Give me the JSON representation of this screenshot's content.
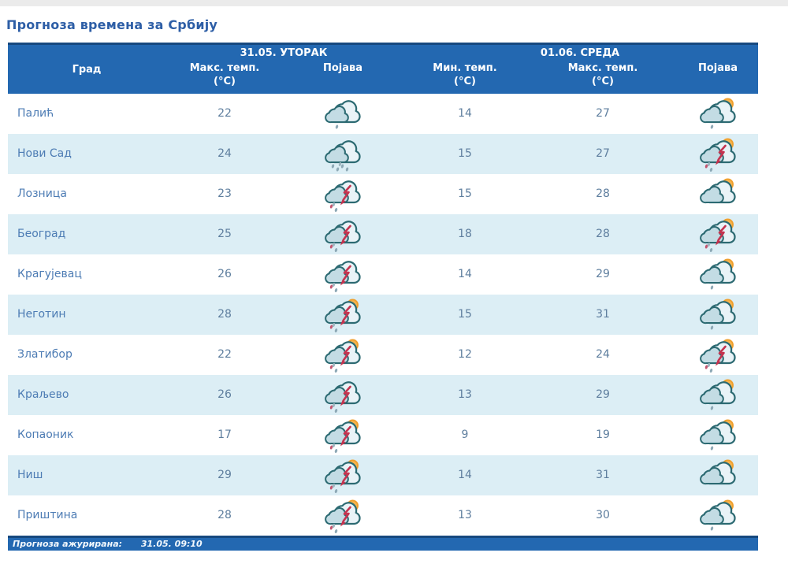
{
  "page": {
    "title": "Прогноза времена за Србију"
  },
  "table": {
    "day_groups": [
      {
        "label": "31.05. УТОРАК"
      },
      {
        "label": "01.06. СРЕДА"
      }
    ],
    "columns": {
      "city": "Град",
      "max_temp": "Макс. темп.",
      "min_temp": "Мин. темп.",
      "unit": "(°C)",
      "phenomenon": "Појава"
    },
    "rows": [
      {
        "city": "Палић",
        "day1_max": "22",
        "day1_icon": "cloud-drizzle-icon",
        "day2_min": "14",
        "day2_max": "27",
        "day2_icon": "sun-cloud-drizzle-icon"
      },
      {
        "city": "Нови Сад",
        "day1_max": "24",
        "day1_icon": "cloud-rain-icon",
        "day2_min": "15",
        "day2_max": "27",
        "day2_icon": "thunderstorm-sun-icon"
      },
      {
        "city": "Лозница",
        "day1_max": "23",
        "day1_icon": "thunderstorm-icon",
        "day2_min": "15",
        "day2_max": "28",
        "day2_icon": "sun-cloud-icon"
      },
      {
        "city": "Београд",
        "day1_max": "25",
        "day1_icon": "thunderstorm-icon",
        "day2_min": "18",
        "day2_max": "28",
        "day2_icon": "thunderstorm-sun-icon"
      },
      {
        "city": "Крагујевац",
        "day1_max": "26",
        "day1_icon": "thunderstorm-icon",
        "day2_min": "14",
        "day2_max": "29",
        "day2_icon": "sun-cloud-drizzle-icon"
      },
      {
        "city": "Неготин",
        "day1_max": "28",
        "day1_icon": "thunderstorm-sun-icon",
        "day2_min": "15",
        "day2_max": "31",
        "day2_icon": "sun-cloud-drizzle-icon"
      },
      {
        "city": "Златибор",
        "day1_max": "22",
        "day1_icon": "thunderstorm-sun-icon",
        "day2_min": "12",
        "day2_max": "24",
        "day2_icon": "thunderstorm-sun-icon"
      },
      {
        "city": "Краљево",
        "day1_max": "26",
        "day1_icon": "thunderstorm-icon",
        "day2_min": "13",
        "day2_max": "29",
        "day2_icon": "sun-cloud-drizzle-icon"
      },
      {
        "city": "Копаоник",
        "day1_max": "17",
        "day1_icon": "thunderstorm-sun-icon",
        "day2_min": "9",
        "day2_max": "19",
        "day2_icon": "sun-cloud-drizzle-icon"
      },
      {
        "city": "Ниш",
        "day1_max": "29",
        "day1_icon": "thunderstorm-sun-icon",
        "day2_min": "14",
        "day2_max": "31",
        "day2_icon": "sun-cloud-icon"
      },
      {
        "city": "Приштина",
        "day1_max": "28",
        "day1_icon": "thunderstorm-sun-icon",
        "day2_min": "13",
        "day2_max": "30",
        "day2_icon": "sun-cloud-drizzle-icon"
      }
    ]
  },
  "footer": {
    "label": "Прогноза ажурирана:",
    "timestamp": "31.05. 09:10"
  },
  "colors": {
    "header_bg": "#2368b1",
    "header_edge": "#17497f",
    "row_alt_bg": "#dceef5",
    "title_text": "#2d5ea6",
    "city_text": "#4d7cb4",
    "temp_text": "#5e7e9e",
    "sun": "#ef9f2c",
    "lightning": "#c5334f",
    "cloud_outline": "#2c6a72"
  }
}
